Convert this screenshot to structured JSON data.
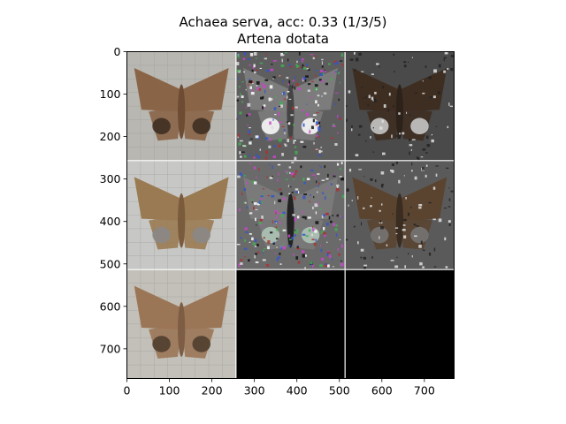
{
  "figure": {
    "title_line1": "Achaea serva, acc: 0.33 (1/3/5)",
    "title_line2": "Artena dotata"
  },
  "axes": {
    "x_ticks": [
      "0",
      "100",
      "200",
      "300",
      "400",
      "500",
      "600",
      "700"
    ],
    "y_ticks": [
      "0",
      "100",
      "200",
      "300",
      "400",
      "500",
      "600",
      "700"
    ]
  },
  "grid": {
    "rows": 3,
    "cols": 3,
    "tiles": [
      {
        "row": 0,
        "col": 0,
        "content": "moth photo (original)",
        "bg": "#b8b7b2",
        "wing": "#8a6446",
        "body": "#6e4c33",
        "spot": "#3a2a20"
      },
      {
        "row": 0,
        "col": 1,
        "content": "noisy saliency map",
        "bg": "#5e5e5e",
        "wing": "#7c7c7c",
        "body": "#444",
        "spot": "#ffffff"
      },
      {
        "row": 0,
        "col": 2,
        "content": "masked moth",
        "bg": "#4a4a4a",
        "wing": "#3e2e22",
        "body": "#2d221a",
        "spot": "#cfcfcf"
      },
      {
        "row": 1,
        "col": 0,
        "content": "moth photo (original)",
        "bg": "#c7c8c6",
        "wing": "#9a7a52",
        "body": "#7a5c3d",
        "spot": "#888"
      },
      {
        "row": 1,
        "col": 1,
        "content": "noisy saliency map",
        "bg": "#6a6a6a",
        "wing": "#7a7a7a",
        "body": "#222",
        "spot": "#b0c8b8"
      },
      {
        "row": 1,
        "col": 2,
        "content": "masked moth",
        "bg": "#5a5a5a",
        "wing": "#5a4430",
        "body": "#3a2c20",
        "spot": "#777"
      },
      {
        "row": 2,
        "col": 0,
        "content": "moth photo (original)",
        "bg": "#c2c0b8",
        "wing": "#9b7656",
        "body": "#7d5e44",
        "spot": "#4a3a2c"
      },
      {
        "row": 2,
        "col": 1,
        "content": "empty",
        "bg": "#000000"
      },
      {
        "row": 2,
        "col": 2,
        "content": "empty",
        "bg": "#000000"
      }
    ]
  }
}
